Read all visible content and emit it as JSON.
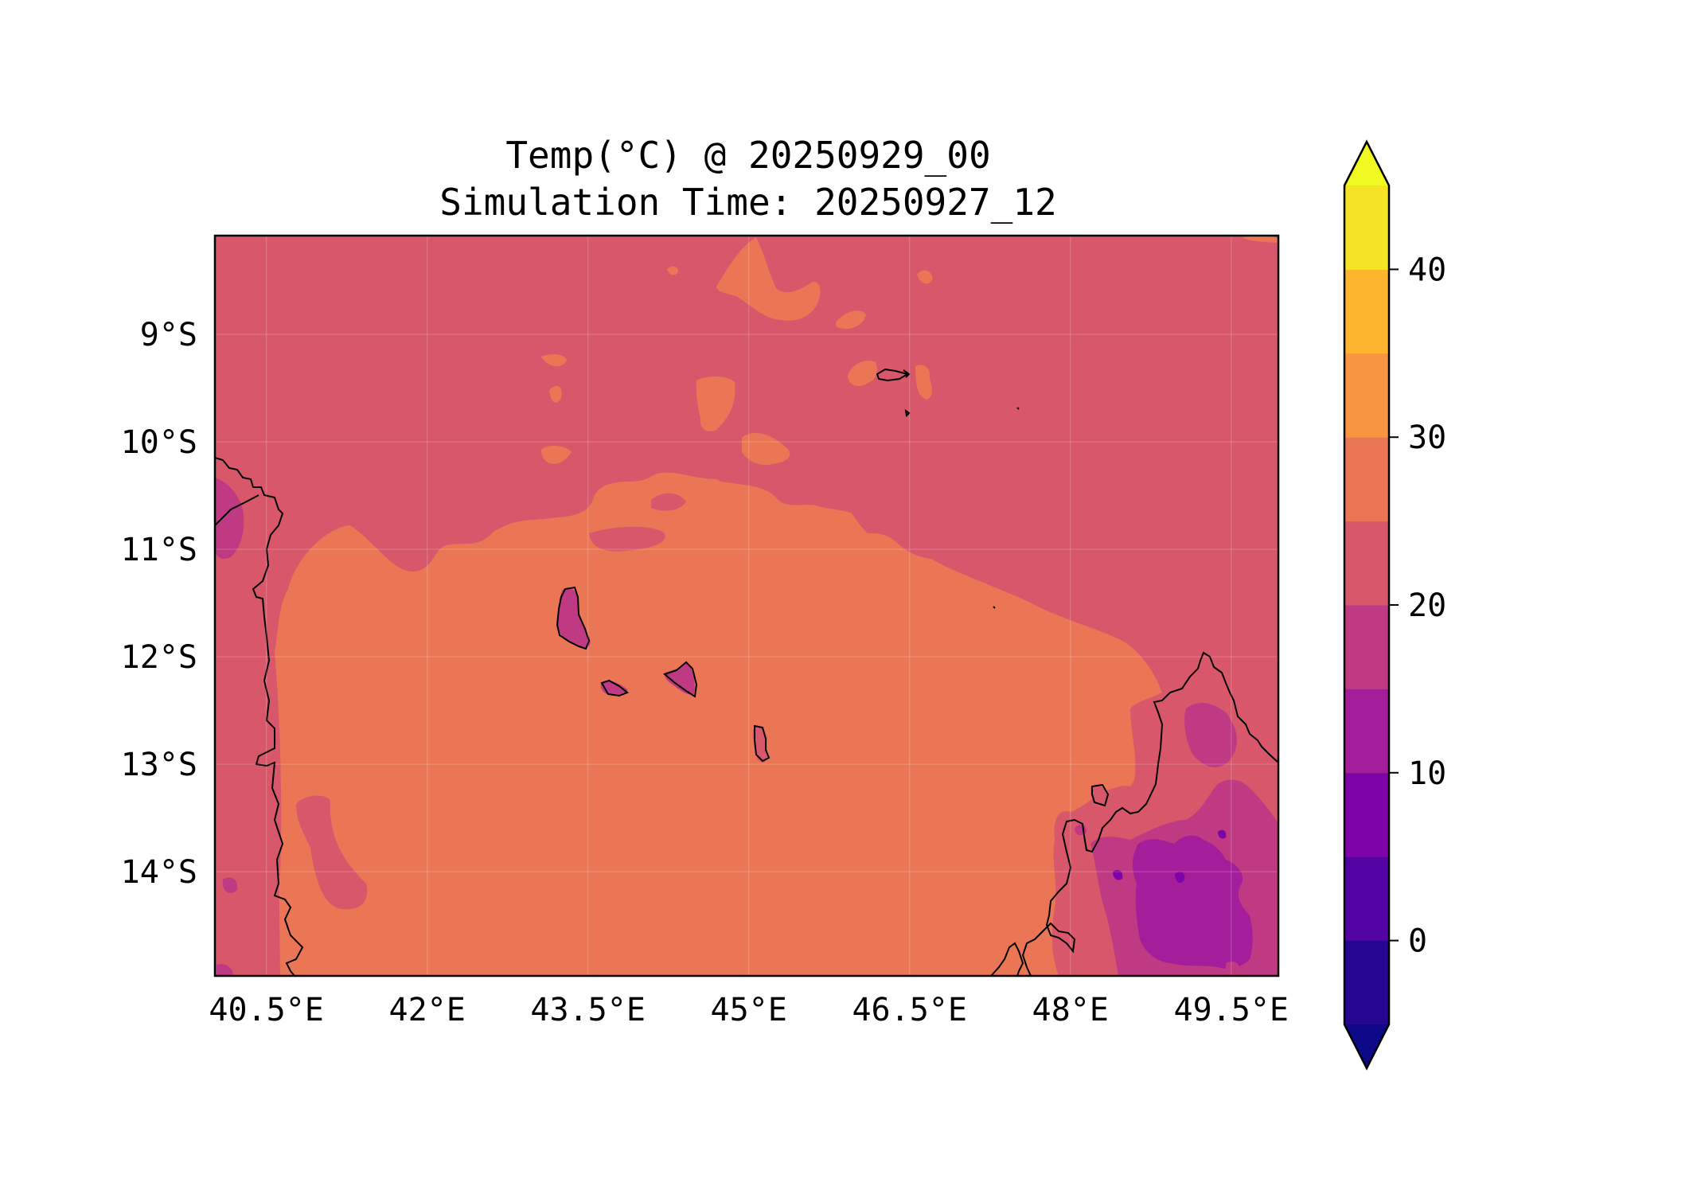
{
  "title": "Temp(°C) @ 20250929_00",
  "subtitle": "Simulation Time: 20250927_12",
  "map": {
    "lon_ticks": [
      "40.5°E",
      "42°E",
      "43.5°E",
      "45°E",
      "46.5°E",
      "48°E",
      "49.5°E"
    ],
    "lon_values": [
      40.5,
      42,
      43.5,
      45,
      46.5,
      48,
      49.5
    ],
    "lat_ticks": [
      "9°S",
      "10°S",
      "11°S",
      "12°S",
      "13°S",
      "14°S"
    ],
    "lat_values": [
      -9,
      -10,
      -11,
      -12,
      -13,
      -14
    ],
    "extent": {
      "lon_min": 40.02,
      "lon_max": 49.94,
      "lat_min": -14.97,
      "lat_max": -8.08
    }
  },
  "colorbar": {
    "tick_labels": [
      "0",
      "10",
      "20",
      "30",
      "40"
    ],
    "tick_values": [
      0,
      10,
      20,
      30,
      40
    ],
    "levels": [
      -5,
      0,
      5,
      10,
      15,
      20,
      25,
      30,
      35,
      40,
      45
    ],
    "colors": [
      "#240691",
      "#5302a3",
      "#7e03a8",
      "#a41e9c",
      "#c03a83",
      "#d8576b",
      "#eb7655",
      "#f89540",
      "#fdb42f",
      "#f5e326"
    ],
    "under_color": "#0d0887",
    "over_color": "#f0f921"
  },
  "fields": {
    "background_color": "#d8576b",
    "warm_color": "#eb7655",
    "cool_color": "#c03a83",
    "cold_color": "#a41e9c",
    "coldest_color": "#7e03a8"
  }
}
